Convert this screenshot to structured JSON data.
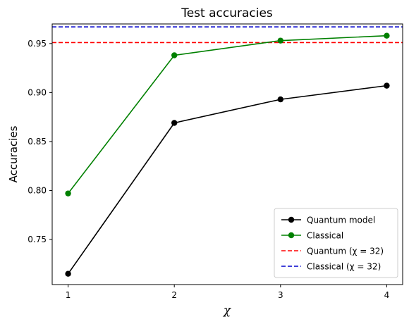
{
  "chart_data": {
    "type": "line",
    "title": "Test accuracies",
    "xlabel": "χ",
    "ylabel": "Accuracies",
    "x": [
      1,
      2,
      3,
      4
    ],
    "xticks": [
      "1",
      "2",
      "3",
      "4"
    ],
    "yticks": [
      "0.75",
      "0.80",
      "0.85",
      "0.90",
      "0.95"
    ],
    "xlim": [
      0.85,
      4.15
    ],
    "ylim": [
      0.704,
      0.97
    ],
    "grid": false,
    "legend_position": "lower-right",
    "series": [
      {
        "name": "Quantum model",
        "values": [
          0.715,
          0.869,
          0.893,
          0.907
        ],
        "color": "#000000",
        "style": "solid",
        "marker": "circle"
      },
      {
        "name": "Classical",
        "values": [
          0.797,
          0.938,
          0.953,
          0.958
        ],
        "color": "#008000",
        "style": "solid",
        "marker": "circle"
      }
    ],
    "reference_lines": [
      {
        "name": "Quantum (χ = 32)",
        "value": 0.951,
        "color": "#ff0000",
        "style": "dashed"
      },
      {
        "name": "Classical (χ = 32)",
        "value": 0.967,
        "color": "#0000cc",
        "style": "dashed"
      }
    ]
  }
}
